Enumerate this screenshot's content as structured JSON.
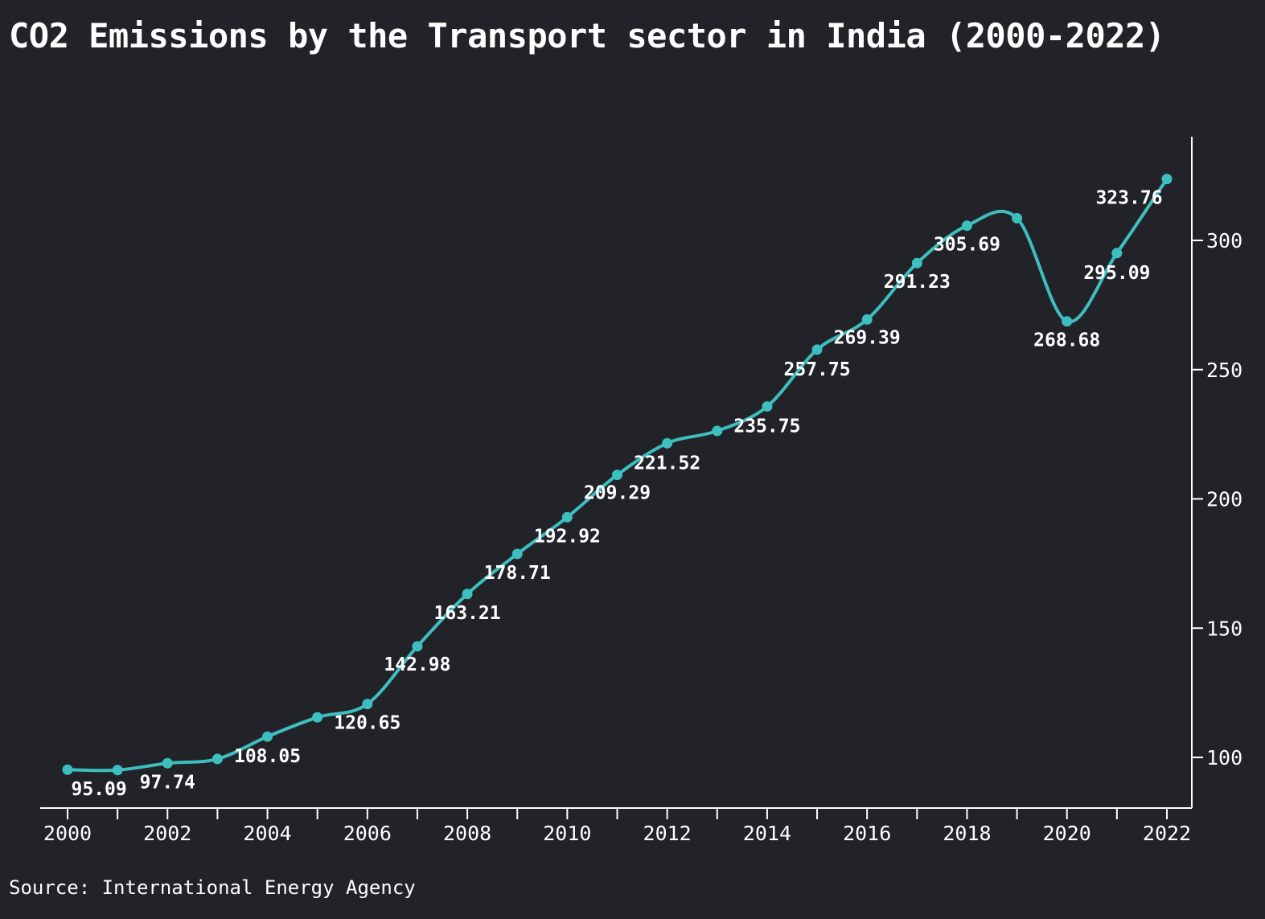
{
  "colors": {
    "background": "#222328",
    "line": "#3dbfc0",
    "text": "#ffffff",
    "axis": "#ffffff"
  },
  "chart_data": {
    "type": "line",
    "title": "CO2 Emissions by the Transport sector in India (2000-2022)",
    "source": "Source: International Energy Agency",
    "xlabel": "",
    "ylabel": "",
    "y_axis_position": "right",
    "x_ticks": [
      "2000",
      "2002",
      "2004",
      "2006",
      "2008",
      "2010",
      "2012",
      "2014",
      "2016",
      "2018",
      "2020",
      "2022"
    ],
    "y_ticks": [
      100,
      150,
      200,
      250,
      300
    ],
    "xlim": [
      2000,
      2022
    ],
    "ylim": [
      80,
      340
    ],
    "grid": false,
    "series": [
      {
        "name": "CO2 Emissions",
        "x": [
          2000,
          2001,
          2002,
          2003,
          2004,
          2005,
          2006,
          2007,
          2008,
          2009,
          2010,
          2011,
          2012,
          2013,
          2014,
          2015,
          2016,
          2017,
          2018,
          2019,
          2020,
          2021,
          2022
        ],
        "values": [
          95.23,
          95.09,
          97.74,
          99.4,
          108.05,
          115.5,
          120.65,
          142.98,
          163.21,
          178.71,
          192.92,
          209.29,
          221.52,
          226.3,
          235.75,
          257.75,
          269.39,
          291.23,
          305.69,
          308.6,
          268.68,
          295.09,
          323.76
        ],
        "labels": [
          "",
          "95.09",
          "97.74",
          "",
          "108.05",
          "",
          "120.65",
          "142.98",
          "163.21",
          "178.71",
          "192.92",
          "209.29",
          "221.52",
          "",
          "235.75",
          "257.75",
          "269.39",
          "291.23",
          "305.69",
          "",
          "268.68",
          "295.09",
          "323.76"
        ]
      }
    ]
  }
}
